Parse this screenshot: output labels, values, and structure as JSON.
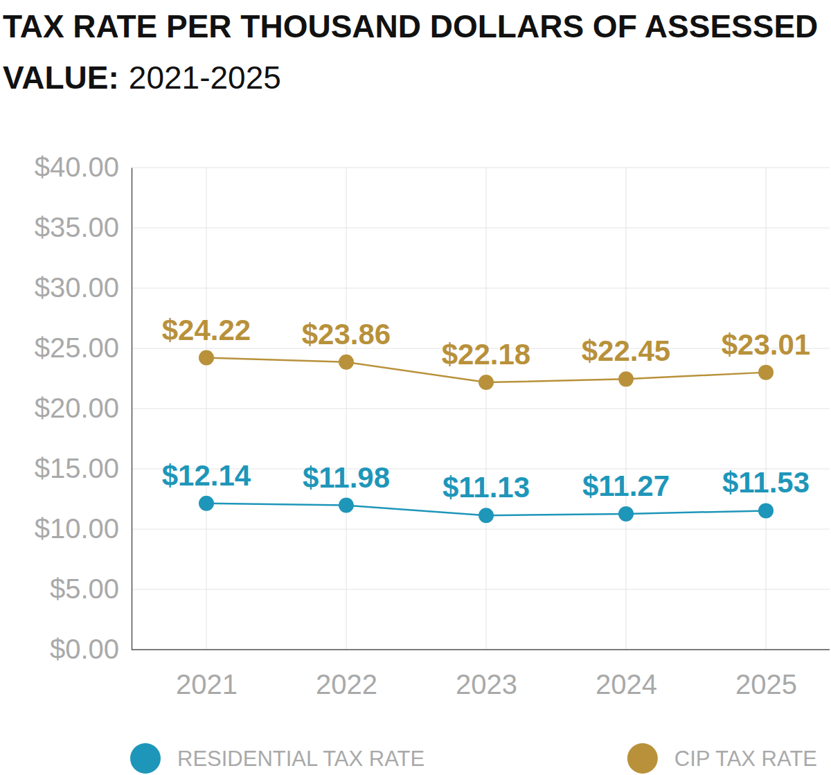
{
  "chart_data": {
    "type": "line",
    "title": "TAX RATE PER THOUSAND DOLLARS OF ASSESSED VALUE:",
    "subtitle": "2021-2025",
    "categories": [
      "2021",
      "2022",
      "2023",
      "2024",
      "2025"
    ],
    "series": [
      {
        "name": "RESIDENTIAL TAX RATE",
        "color": "#1e96b9",
        "values": [
          12.14,
          11.98,
          11.13,
          11.27,
          11.53
        ],
        "value_labels": [
          "$12.14",
          "$11.98",
          "$11.13",
          "$11.27",
          "$11.53"
        ]
      },
      {
        "name": "CIP TAX RATE",
        "color": "#b8913a",
        "values": [
          24.22,
          23.86,
          22.18,
          22.45,
          23.01
        ],
        "value_labels": [
          "$24.22",
          "$23.86",
          "$22.18",
          "$22.45",
          "$23.01"
        ]
      }
    ],
    "ylim": [
      0,
      40
    ],
    "yticks": [
      {
        "value": 0,
        "label": "$0.00"
      },
      {
        "value": 5,
        "label": "$5.00"
      },
      {
        "value": 10,
        "label": "$10.00"
      },
      {
        "value": 15,
        "label": "$15.00"
      },
      {
        "value": 20,
        "label": "$20.00"
      },
      {
        "value": 25,
        "label": "$25.00"
      },
      {
        "value": 30,
        "label": "$30.00"
      },
      {
        "value": 35,
        "label": "$35.00"
      },
      {
        "value": 40,
        "label": "$40.00"
      }
    ],
    "grid": true,
    "data_labels": true,
    "legend": "bottom",
    "marker": "circle"
  }
}
